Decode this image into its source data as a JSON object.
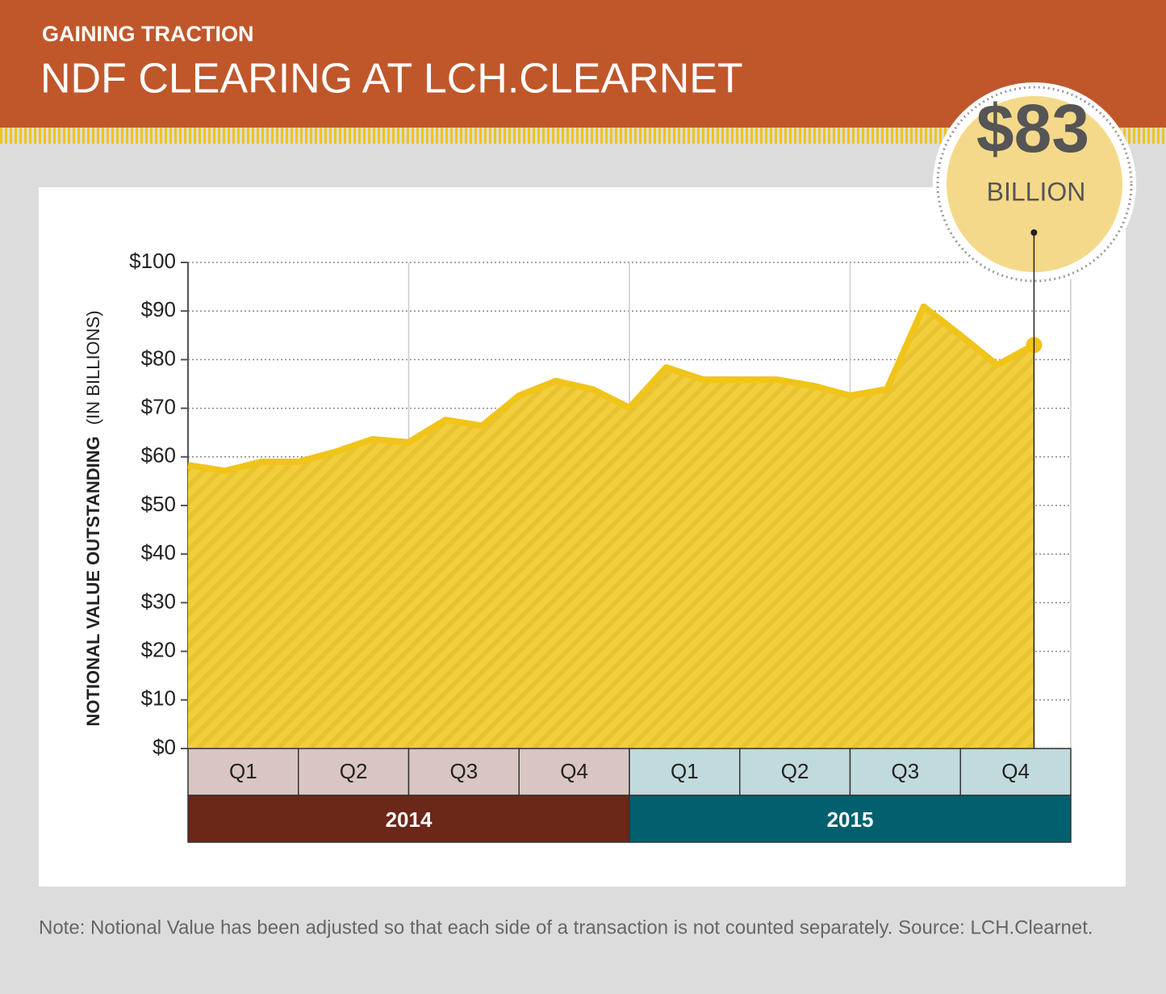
{
  "chart_data": {
    "type": "area",
    "kicker": "GAINING TRACTION",
    "title": "NDF CLEARING AT LCH.CLEARNET",
    "ylabel": "NOTIONAL VALUE OUTSTANDING",
    "ylabel_unit": "(IN BILLIONS)",
    "categories": [
      null,
      null,
      null,
      null,
      null,
      null,
      null,
      null,
      null,
      null,
      null,
      null,
      null,
      null,
      null,
      null,
      null,
      null,
      null,
      null,
      null,
      null,
      null,
      null
    ],
    "values": [
      58.3,
      57.1,
      59,
      59,
      61,
      63.6,
      63,
      67.6,
      66.4,
      72.6,
      75.6,
      73.9,
      70.1,
      78.4,
      75.9,
      75.9,
      75.9,
      74.6,
      72.6,
      73.9,
      90.9,
      85,
      78.9,
      83
    ],
    "color": "#f0c419",
    "ylim": [
      0,
      100
    ],
    "yticks": [
      {
        "value": 0,
        "label": "$0"
      },
      {
        "value": 10,
        "label": "$10"
      },
      {
        "value": 20,
        "label": "$20"
      },
      {
        "value": 30,
        "label": "$30"
      },
      {
        "value": 40,
        "label": "$40"
      },
      {
        "value": 50,
        "label": "$50"
      },
      {
        "value": 60,
        "label": "$60"
      },
      {
        "value": 70,
        "label": "$70"
      },
      {
        "value": 80,
        "label": "$80"
      },
      {
        "value": 90,
        "label": "$90"
      },
      {
        "value": 100,
        "label": "$100"
      }
    ],
    "grid": true,
    "quarters": [
      "Q1",
      "Q2",
      "Q3",
      "Q4",
      "Q1",
      "Q2",
      "Q3",
      "Q4"
    ],
    "years": [
      "2014",
      "2015"
    ],
    "callout": {
      "label": "$83",
      "unit": "BILLION"
    },
    "note": "Note: Notional Value has been adjusted so that each side of a transaction is not counted separately. Source: LCH.Clearnet."
  }
}
